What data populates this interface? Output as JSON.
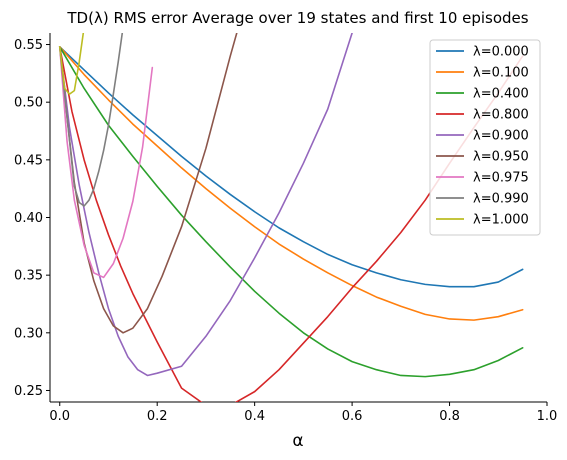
{
  "chart_data": {
    "type": "line",
    "title": "TD(λ) RMS error Average over 19 states and first 10 episodes",
    "xlabel": "α",
    "ylabel": "",
    "xlim": [
      -0.02,
      1.0
    ],
    "ylim": [
      0.24,
      0.56
    ],
    "xticks": [
      0.0,
      0.2,
      0.4,
      0.6,
      0.8,
      1.0
    ],
    "xtick_labels": [
      "0.0",
      "0.2",
      "0.4",
      "0.6",
      "0.8",
      "1.0"
    ],
    "yticks": [
      0.25,
      0.3,
      0.35,
      0.4,
      0.45,
      0.5,
      0.55
    ],
    "ytick_labels": [
      "0.25",
      "0.30",
      "0.35",
      "0.40",
      "0.45",
      "0.50",
      "0.55"
    ],
    "grid": false,
    "legend_position": "top-right",
    "series": [
      {
        "name": "λ=0.000",
        "color": "#1f77b4",
        "x": [
          0,
          0.05,
          0.1,
          0.15,
          0.2,
          0.25,
          0.3,
          0.35,
          0.4,
          0.45,
          0.5,
          0.55,
          0.6,
          0.65,
          0.7,
          0.75,
          0.8,
          0.85,
          0.9,
          0.95
        ],
        "y": [
          0.548,
          0.528,
          0.508,
          0.489,
          0.471,
          0.453,
          0.436,
          0.42,
          0.405,
          0.391,
          0.379,
          0.368,
          0.359,
          0.352,
          0.346,
          0.342,
          0.34,
          0.34,
          0.344,
          0.355
        ]
      },
      {
        "name": "λ=0.100",
        "color": "#ff7f0e",
        "x": [
          0,
          0.05,
          0.1,
          0.15,
          0.2,
          0.25,
          0.3,
          0.35,
          0.4,
          0.45,
          0.5,
          0.55,
          0.6,
          0.65,
          0.7,
          0.75,
          0.8,
          0.85,
          0.9,
          0.95
        ],
        "y": [
          0.548,
          0.524,
          0.502,
          0.481,
          0.462,
          0.443,
          0.425,
          0.408,
          0.392,
          0.377,
          0.364,
          0.352,
          0.341,
          0.331,
          0.323,
          0.316,
          0.312,
          0.311,
          0.314,
          0.32
        ]
      },
      {
        "name": "λ=0.400",
        "color": "#2ca02c",
        "x": [
          0,
          0.05,
          0.1,
          0.15,
          0.2,
          0.25,
          0.3,
          0.35,
          0.4,
          0.45,
          0.5,
          0.55,
          0.6,
          0.65,
          0.7,
          0.75,
          0.8,
          0.85,
          0.9,
          0.95
        ],
        "y": [
          0.548,
          0.512,
          0.48,
          0.453,
          0.427,
          0.402,
          0.379,
          0.357,
          0.336,
          0.317,
          0.3,
          0.286,
          0.275,
          0.268,
          0.263,
          0.262,
          0.264,
          0.268,
          0.276,
          0.287
        ]
      },
      {
        "name": "λ=0.800",
        "color": "#d62728",
        "x": [
          0,
          0.025,
          0.05,
          0.075,
          0.1,
          0.125,
          0.15,
          0.2,
          0.25,
          0.3,
          0.35,
          0.4,
          0.45,
          0.5,
          0.55,
          0.6,
          0.65,
          0.7,
          0.75,
          0.8,
          0.85,
          0.9,
          0.95
        ],
        "y": [
          0.548,
          0.492,
          0.45,
          0.415,
          0.385,
          0.358,
          0.334,
          0.292,
          0.252,
          0.237,
          0.237,
          0.249,
          0.268,
          0.291,
          0.314,
          0.339,
          0.362,
          0.387,
          0.415,
          0.447,
          0.478,
          0.508,
          0.54
        ]
      },
      {
        "name": "λ=0.900",
        "color": "#9467bd",
        "x": [
          0,
          0.02,
          0.04,
          0.06,
          0.08,
          0.1,
          0.12,
          0.14,
          0.16,
          0.18,
          0.2,
          0.25,
          0.3,
          0.35,
          0.4,
          0.45,
          0.5,
          0.55,
          0.6
        ],
        "y": [
          0.548,
          0.478,
          0.428,
          0.387,
          0.352,
          0.321,
          0.297,
          0.279,
          0.268,
          0.263,
          0.265,
          0.271,
          0.297,
          0.328,
          0.365,
          0.404,
          0.447,
          0.494,
          0.56
        ]
      },
      {
        "name": "λ=0.950",
        "color": "#8c564b",
        "x": [
          0,
          0.015,
          0.03,
          0.05,
          0.07,
          0.09,
          0.11,
          0.13,
          0.15,
          0.18,
          0.21,
          0.25,
          0.3,
          0.35,
          0.37
        ],
        "y": [
          0.548,
          0.487,
          0.43,
          0.378,
          0.345,
          0.321,
          0.306,
          0.3,
          0.304,
          0.321,
          0.349,
          0.392,
          0.46,
          0.54,
          0.57
        ]
      },
      {
        "name": "λ=0.975",
        "color": "#e377c2",
        "x": [
          0,
          0.015,
          0.03,
          0.05,
          0.07,
          0.09,
          0.11,
          0.13,
          0.15,
          0.17,
          0.19
        ],
        "y": [
          0.548,
          0.466,
          0.415,
          0.376,
          0.352,
          0.348,
          0.36,
          0.382,
          0.414,
          0.461,
          0.53
        ]
      },
      {
        "name": "λ=0.990",
        "color": "#7f7f7f",
        "x": [
          0,
          0.01,
          0.02,
          0.03,
          0.04,
          0.05,
          0.06,
          0.07,
          0.08,
          0.09,
          0.1,
          0.11,
          0.12,
          0.13
        ],
        "y": [
          0.548,
          0.507,
          0.467,
          0.427,
          0.413,
          0.41,
          0.415,
          0.425,
          0.44,
          0.458,
          0.48,
          0.507,
          0.535,
          0.565
        ]
      },
      {
        "name": "λ=1.000",
        "color": "#bcbd22",
        "x": [
          0,
          0.01,
          0.02,
          0.03,
          0.04,
          0.05
        ],
        "y": [
          0.548,
          0.512,
          0.507,
          0.51,
          0.535,
          0.565
        ]
      }
    ]
  }
}
